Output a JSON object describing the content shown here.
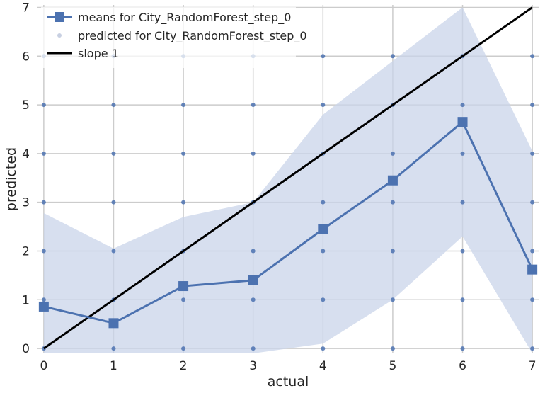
{
  "chart_data": {
    "type": "line",
    "xlabel": "actual",
    "ylabel": "predicted",
    "xlim": [
      -0.1,
      7.1
    ],
    "ylim": [
      -0.1,
      7.05
    ],
    "xticks": [
      "0",
      "1",
      "2",
      "3",
      "4",
      "5",
      "6",
      "7"
    ],
    "yticks": [
      "0",
      "1",
      "2",
      "3",
      "4",
      "5",
      "6",
      "7"
    ],
    "grid": true,
    "legend_position": "top-left",
    "band_color": "#c9d4ea",
    "series": [
      {
        "name": "means for City_RandomForest_step_0",
        "kind": "line-square-markers",
        "color": "#4c72b0",
        "x": [
          0,
          1,
          2,
          3,
          4,
          5,
          6,
          7
        ],
        "y": [
          0.86,
          0.52,
          1.28,
          1.4,
          2.45,
          3.45,
          4.65,
          1.62
        ]
      },
      {
        "name": "predicted for City_RandomForest_step_0",
        "kind": "scatter",
        "color": "#4c72b0",
        "points": [
          [
            0,
            0
          ],
          [
            0,
            1
          ],
          [
            0,
            2
          ],
          [
            0,
            3
          ],
          [
            0,
            4
          ],
          [
            0,
            5
          ],
          [
            0,
            6
          ],
          [
            1,
            0
          ],
          [
            1,
            1
          ],
          [
            1,
            2
          ],
          [
            1,
            3
          ],
          [
            1,
            4
          ],
          [
            1,
            5
          ],
          [
            1,
            6
          ],
          [
            2,
            0
          ],
          [
            2,
            1
          ],
          [
            2,
            2
          ],
          [
            2,
            3
          ],
          [
            2,
            4
          ],
          [
            2,
            5
          ],
          [
            2,
            6
          ],
          [
            3,
            0
          ],
          [
            3,
            1
          ],
          [
            3,
            2
          ],
          [
            3,
            3
          ],
          [
            3,
            4
          ],
          [
            3,
            5
          ],
          [
            3,
            6
          ],
          [
            4,
            0
          ],
          [
            4,
            1
          ],
          [
            4,
            2
          ],
          [
            4,
            3
          ],
          [
            4,
            4
          ],
          [
            4,
            5
          ],
          [
            4,
            6
          ],
          [
            5,
            0
          ],
          [
            5,
            1
          ],
          [
            5,
            2
          ],
          [
            5,
            3
          ],
          [
            5,
            4
          ],
          [
            5,
            5
          ],
          [
            5,
            6
          ],
          [
            6,
            0
          ],
          [
            6,
            1
          ],
          [
            6,
            2
          ],
          [
            6,
            3
          ],
          [
            6,
            4
          ],
          [
            6,
            5
          ],
          [
            6,
            6
          ],
          [
            7,
            0
          ],
          [
            7,
            1
          ],
          [
            7,
            2
          ],
          [
            7,
            3
          ],
          [
            7,
            4
          ],
          [
            7,
            5
          ],
          [
            7,
            6
          ]
        ]
      },
      {
        "name": "slope 1",
        "kind": "line",
        "color": "#000000",
        "x": [
          0,
          7
        ],
        "y": [
          0,
          7
        ]
      }
    ],
    "confidence_band": {
      "x": [
        0,
        1,
        2,
        3,
        4,
        5,
        6,
        7
      ],
      "upper": [
        2.78,
        2.05,
        2.7,
        3.0,
        4.8,
        5.9,
        7.0,
        4.05
      ],
      "lower": [
        -0.1,
        -0.1,
        -0.1,
        -0.1,
        0.1,
        1.0,
        2.3,
        -0.1
      ]
    }
  }
}
